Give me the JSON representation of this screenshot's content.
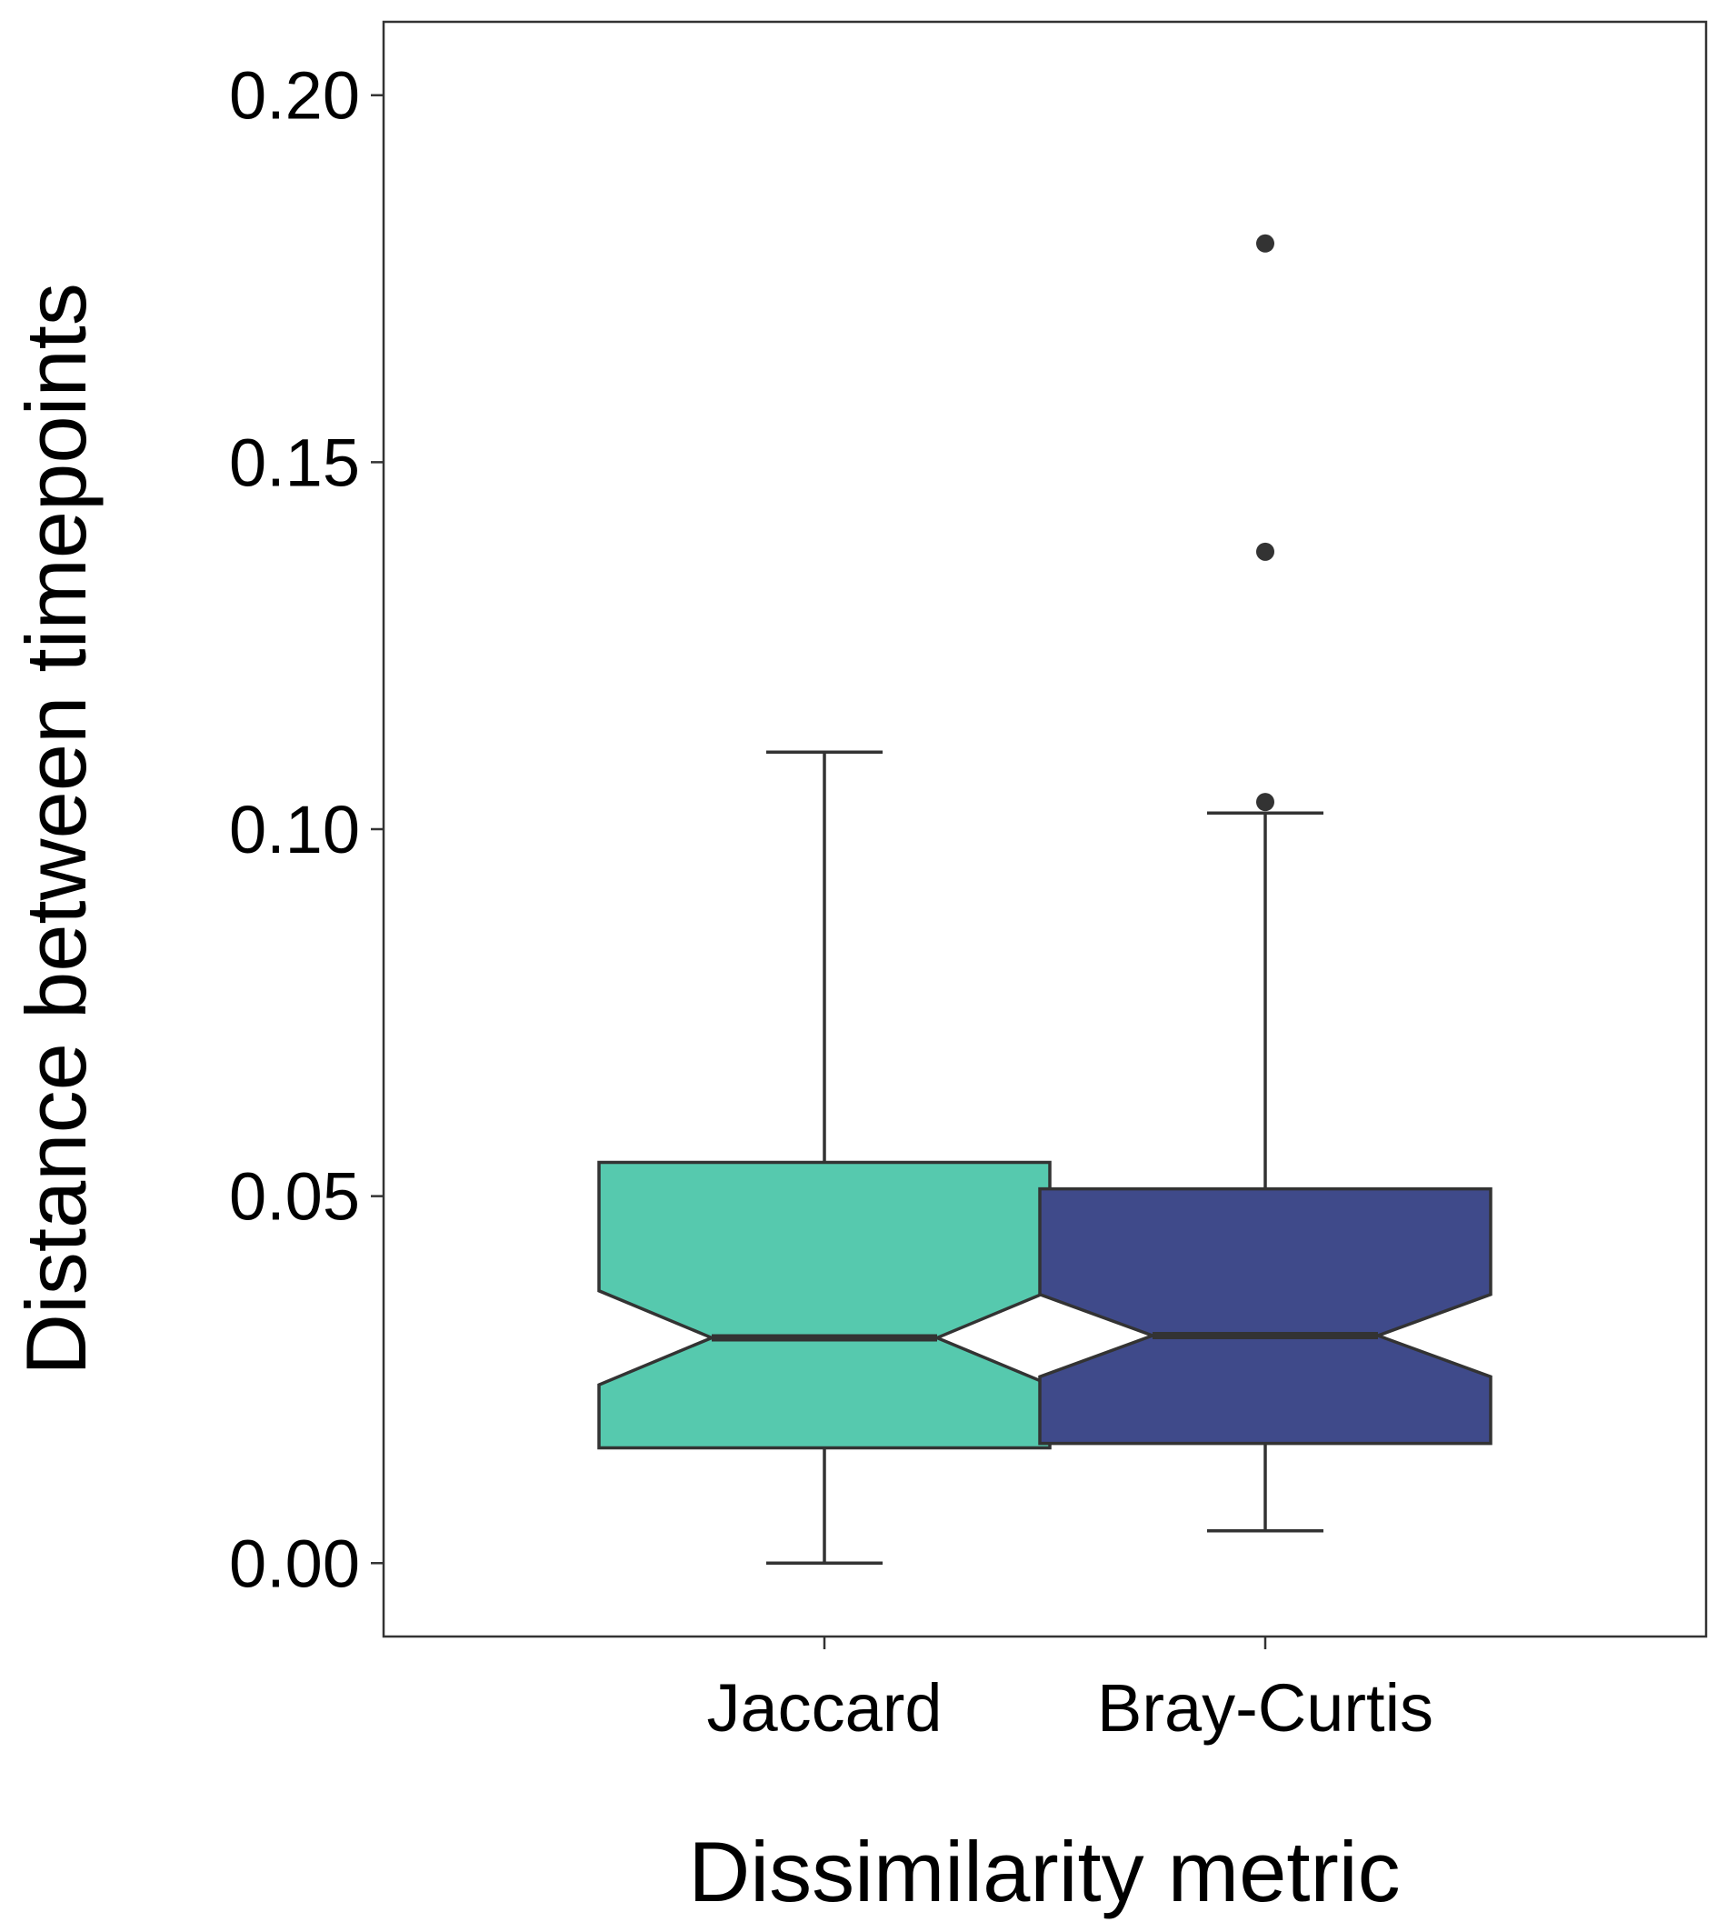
{
  "chart_data": {
    "type": "boxplot",
    "notched": true,
    "xlabel": "Dissimilarity metric",
    "ylabel": "Distance between timepoints",
    "ylim": [
      -0.01,
      0.21
    ],
    "yticks": [
      "0.00",
      "0.05",
      "0.10",
      "0.15",
      "0.20"
    ],
    "categories": [
      "Jaccard",
      "Bray-Curtis"
    ],
    "series": [
      {
        "category": "Jaccard",
        "color": "#56c9ae",
        "whisker_low": 0.0,
        "q1": 0.0157,
        "median": 0.0307,
        "q3": 0.0546,
        "whisker_high": 0.1105,
        "notch_low": 0.0243,
        "notch_high": 0.0371,
        "outliers": []
      },
      {
        "category": "Bray-Curtis",
        "color": "#3f4a8a",
        "whisker_low": 0.0044,
        "q1": 0.0163,
        "median": 0.031,
        "q3": 0.051,
        "whisker_high": 0.1022,
        "notch_low": 0.0254,
        "notch_high": 0.0366,
        "outliers": [
          0.1798,
          0.1378,
          0.1037
        ]
      }
    ],
    "grid": false,
    "legend": "none"
  }
}
